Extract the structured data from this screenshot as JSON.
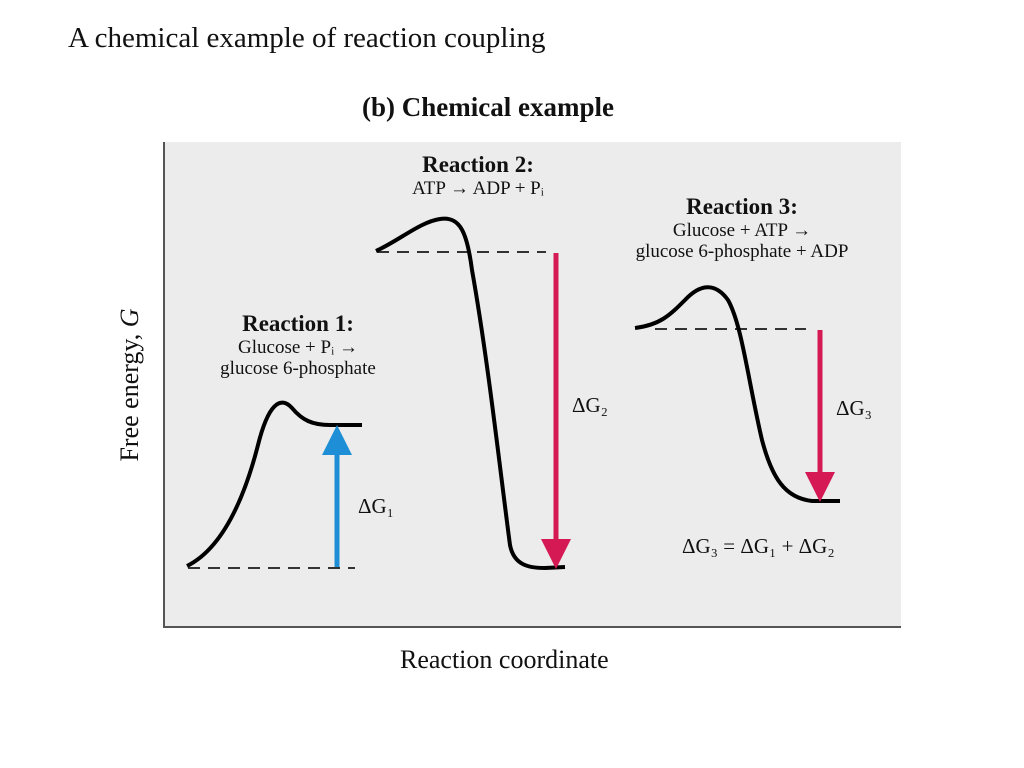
{
  "slide": {
    "title": "A chemical example of reaction coupling"
  },
  "panel": {
    "title": "(b) Chemical example",
    "x_axis_label": "Reaction coordinate",
    "y_axis_label": "Free energy, G",
    "y_axis_label_parts": {
      "text": "Free energy, ",
      "symbol": "G"
    }
  },
  "reactions": [
    {
      "heading": "Reaction 1:",
      "line1": "Glucose + Pᵢ →",
      "line2": "glucose 6-phosphate",
      "delta_label": "ΔG₁",
      "arrow_direction": "up"
    },
    {
      "heading": "Reaction 2:",
      "line1": "ATP → ADP + Pᵢ",
      "line2": "",
      "delta_label": "ΔG₂",
      "arrow_direction": "down"
    },
    {
      "heading": "Reaction 3:",
      "line1": "Glucose + ATP →",
      "line2": "glucose 6-phosphate + ADP",
      "delta_label": "ΔG₃",
      "arrow_direction": "down"
    }
  ],
  "summary_equation": "ΔG₃ = ΔG₁ + ΔG₂",
  "colors": {
    "up_arrow": "#1e8fd6",
    "down_arrow": "#d41954",
    "curve": "#000000",
    "plot_background": "#ececec"
  }
}
